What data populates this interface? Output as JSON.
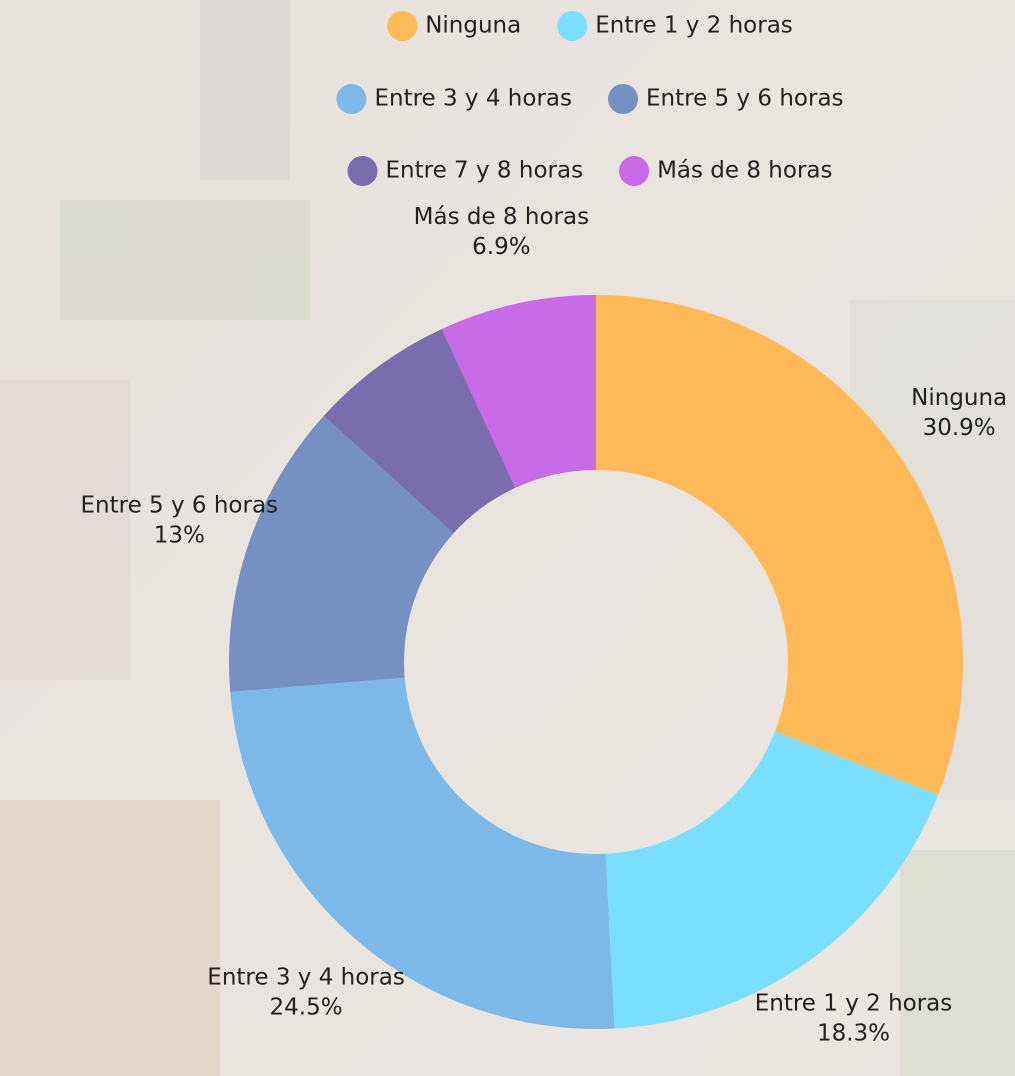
{
  "chart_data": {
    "type": "donut",
    "categories": [
      "Ninguna",
      "Entre 1 y 2 horas",
      "Entre 3 y 4 horas",
      "Entre 5 y 6 horas",
      "Entre 7 y 8 horas",
      "Más de 8 horas"
    ],
    "values": [
      30.9,
      18.3,
      24.5,
      13,
      6.4,
      6.9
    ],
    "value_labels": [
      "30.9%",
      "18.3%",
      "24.5%",
      "13%",
      null,
      "6.9%"
    ],
    "colors": [
      "#ffb957",
      "#7adfff",
      "#7db9e8",
      "#7690c4",
      "#7a6dad",
      "#c76be6"
    ]
  }
}
